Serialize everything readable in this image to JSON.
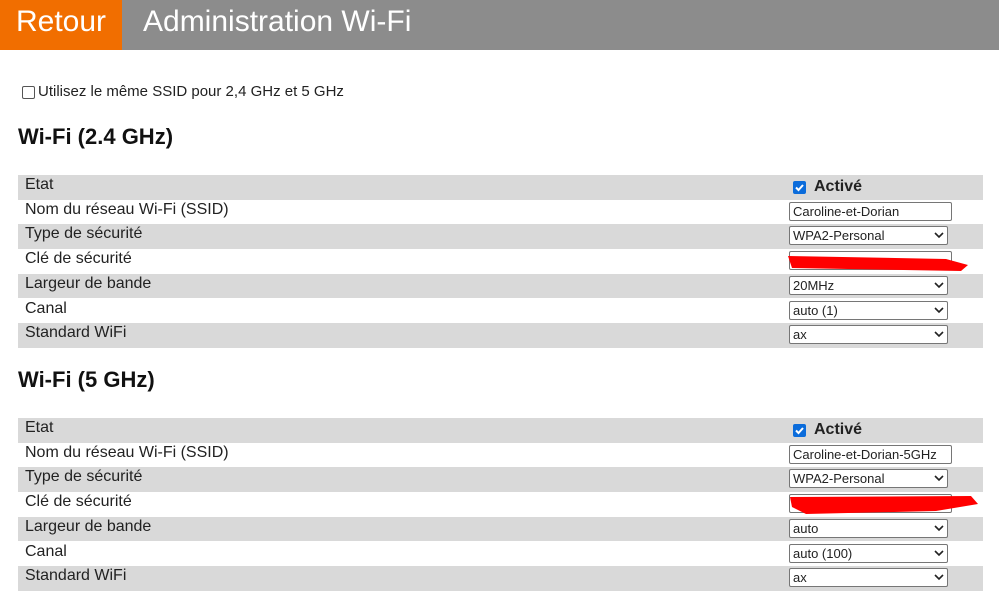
{
  "header": {
    "back": "Retour",
    "title": "Administration Wi-Fi"
  },
  "same_ssid_label": "Utilisez le même SSID pour 2,4 GHz et 5 GHz",
  "sections": [
    {
      "title": "Wi-Fi (2.4 GHz)",
      "rows": [
        {
          "label": "Etat",
          "value": "Activé"
        },
        {
          "label": "Nom du réseau Wi-Fi (SSID)",
          "value": "Caroline-et-Dorian"
        },
        {
          "label": "Type de sécurité",
          "value": "WPA2-Personal"
        },
        {
          "label": "Clé de sécurité"
        },
        {
          "label": "Largeur de bande",
          "value": "20MHz"
        },
        {
          "label": "Canal",
          "value": "auto (1)"
        },
        {
          "label": "Standard WiFi",
          "value": "ax"
        }
      ]
    },
    {
      "title": "Wi-Fi (5 GHz)",
      "rows": [
        {
          "label": "Etat",
          "value": "Activé"
        },
        {
          "label": "Nom du réseau Wi-Fi (SSID)",
          "value": "Caroline-et-Dorian-5GHz"
        },
        {
          "label": "Type de sécurité",
          "value": "WPA2-Personal"
        },
        {
          "label": "Clé de sécurité"
        },
        {
          "label": "Largeur de bande",
          "value": "auto"
        },
        {
          "label": "Canal",
          "value": "auto (100)"
        },
        {
          "label": "Standard WiFi",
          "value": "ax"
        }
      ]
    }
  ]
}
